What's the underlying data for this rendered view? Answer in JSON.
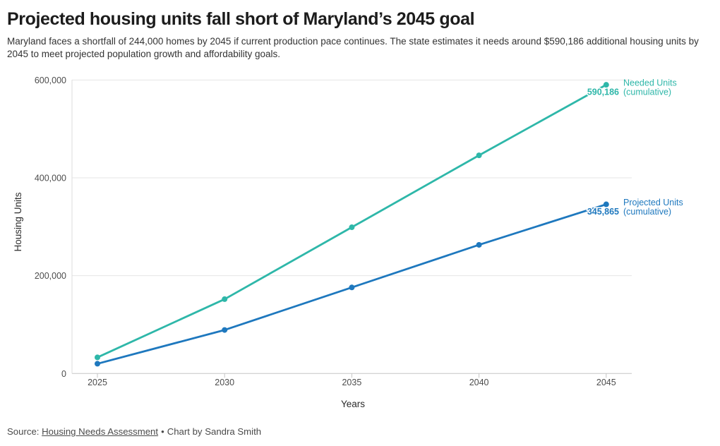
{
  "header": {
    "title": "Projected housing units fall short of Maryland’s 2045 goal",
    "subtitle": "Maryland faces a shortfall of 244,000 homes by 2045 if current production pace continues. The state estimates it needs around $590,186 additional housing units by 2045 to meet projected population growth and affordability goals."
  },
  "chart_data": {
    "type": "line",
    "title": "Projected housing units fall short of Maryland’s 2045 goal",
    "xlabel": "Years",
    "ylabel": "Housing Units",
    "x": [
      2025,
      2030,
      2035,
      2040,
      2045
    ],
    "x_ticks": [
      "2025",
      "2030",
      "2035",
      "2040",
      "2045"
    ],
    "y_ticks": [
      {
        "value": 600000,
        "label": "600,000"
      },
      {
        "value": 400000,
        "label": "400,000"
      },
      {
        "value": 200000,
        "label": "200,000"
      },
      {
        "value": 0,
        "label": "0"
      }
    ],
    "ylim": [
      0,
      600000
    ],
    "grid": "horizontal",
    "legend_position": "end-of-line-labels",
    "series": [
      {
        "name": "Needed Units (cumulative)",
        "label_lines": [
          "Needed Units",
          "(cumulative)"
        ],
        "end_value_label": "590,186",
        "color": "#2eb7a9",
        "values": [
          33000,
          152000,
          299000,
          446000,
          590186
        ]
      },
      {
        "name": "Projected Units (cumulative)",
        "label_lines": [
          "Projected Units",
          "(cumulative)"
        ],
        "end_value_label": "345,865",
        "color": "#1e78be",
        "values": [
          20000,
          89000,
          176000,
          263000,
          345865
        ]
      }
    ]
  },
  "footer": {
    "source_prefix": "Source: ",
    "source_link": "Housing Needs Assessment",
    "separator": "•",
    "byline": "Chart by Sandra Smith"
  }
}
